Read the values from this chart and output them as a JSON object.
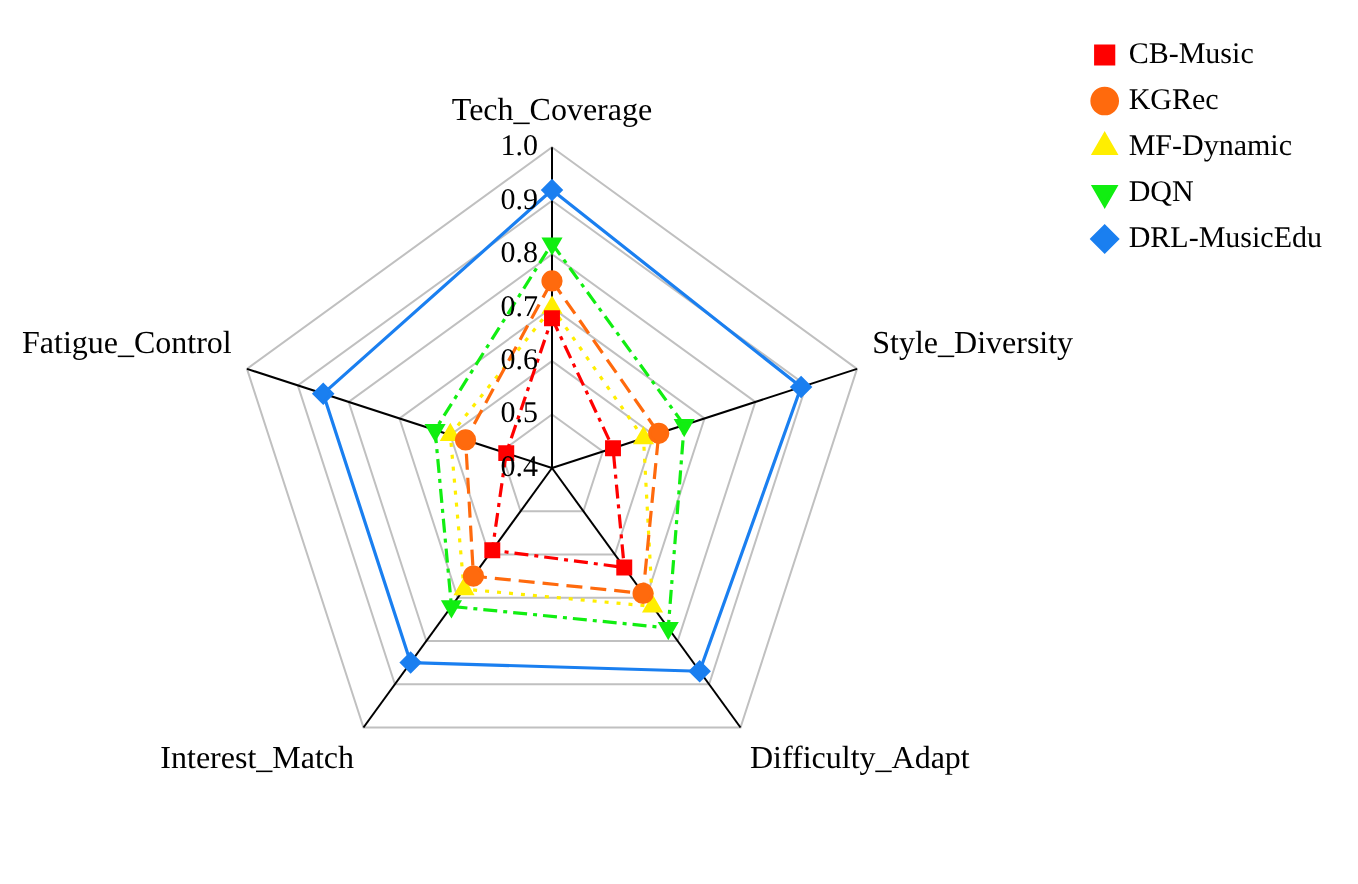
{
  "chart_data": {
    "type": "radar",
    "categories": [
      "Tech_Coverage",
      "Style_Diversity",
      "Difficulty_Adapt",
      "Interest_Match",
      "Fatigue_Control"
    ],
    "ylim": [
      0.4,
      1.0
    ],
    "yticks": [
      0.4,
      0.5,
      0.6,
      0.7,
      0.8,
      0.9,
      {
        "value": 1,
        "label": "1.0"
      }
    ],
    "grid": true,
    "legend": "top right",
    "series": [
      {
        "name": "CB-Music",
        "color": "#ff0000",
        "marker": "square",
        "line_style": "dashdot",
        "values": [
          0.68,
          0.52,
          0.63,
          0.59,
          0.49
        ]
      },
      {
        "name": "KGRec",
        "color": "#ff6a0d",
        "marker": "circle",
        "line_style": "dashed",
        "values": [
          0.75,
          0.61,
          0.69,
          0.65,
          0.57
        ]
      },
      {
        "name": "MF-Dynamic",
        "color": "#ffee00",
        "marker": "triangle",
        "line_style": "dotted",
        "values": [
          0.7,
          0.58,
          0.72,
          0.68,
          0.6
        ]
      },
      {
        "name": "DQN",
        "color": "#11ee11",
        "marker": "triangle-down",
        "line_style": "dashdot",
        "values": [
          0.82,
          0.66,
          0.77,
          0.72,
          0.63
        ]
      },
      {
        "name": "DRL-MusicEdu",
        "color": "#1a7ff0",
        "marker": "diamond",
        "line_style": "solid",
        "values": [
          0.92,
          0.89,
          0.87,
          0.85,
          0.85
        ]
      }
    ]
  }
}
